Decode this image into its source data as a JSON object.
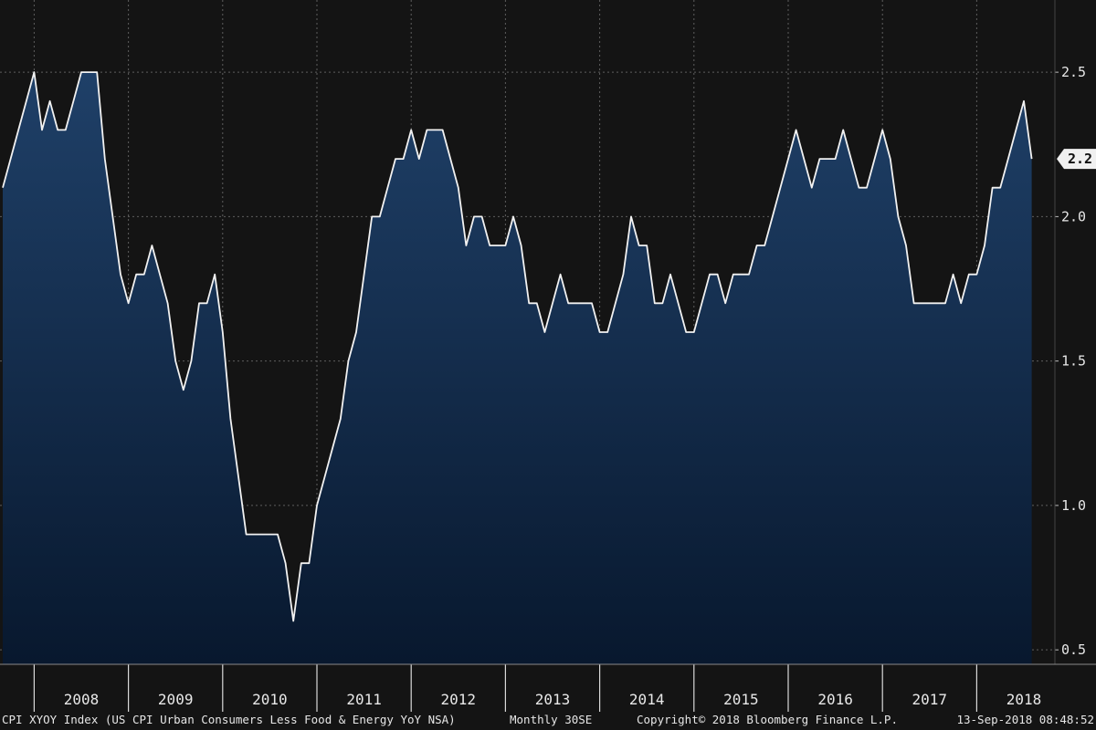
{
  "chart_data": {
    "type": "area",
    "series": [
      {
        "ticker": "CPI XYOY Index",
        "x": [
          "2007-09",
          "2007-10",
          "2007-11",
          "2007-12",
          "2008-01",
          "2008-02",
          "2008-03",
          "2008-04",
          "2008-05",
          "2008-06",
          "2008-07",
          "2008-08",
          "2008-09",
          "2008-10",
          "2008-11",
          "2008-12",
          "2009-01",
          "2009-02",
          "2009-03",
          "2009-04",
          "2009-05",
          "2009-06",
          "2009-07",
          "2009-08",
          "2009-09",
          "2009-10",
          "2009-11",
          "2009-12",
          "2010-01",
          "2010-02",
          "2010-03",
          "2010-04",
          "2010-05",
          "2010-06",
          "2010-07",
          "2010-08",
          "2010-09",
          "2010-10",
          "2010-11",
          "2010-12",
          "2011-01",
          "2011-02",
          "2011-03",
          "2011-04",
          "2011-05",
          "2011-06",
          "2011-07",
          "2011-08",
          "2011-09",
          "2011-10",
          "2011-11",
          "2011-12",
          "2012-01",
          "2012-02",
          "2012-03",
          "2012-04",
          "2012-05",
          "2012-06",
          "2012-07",
          "2012-08",
          "2012-09",
          "2012-10",
          "2012-11",
          "2012-12",
          "2013-01",
          "2013-02",
          "2013-03",
          "2013-04",
          "2013-05",
          "2013-06",
          "2013-07",
          "2013-08",
          "2013-09",
          "2013-10",
          "2013-11",
          "2013-12",
          "2014-01",
          "2014-02",
          "2014-03",
          "2014-04",
          "2014-05",
          "2014-06",
          "2014-07",
          "2014-08",
          "2014-09",
          "2014-10",
          "2014-11",
          "2014-12",
          "2015-01",
          "2015-02",
          "2015-03",
          "2015-04",
          "2015-05",
          "2015-06",
          "2015-07",
          "2015-08",
          "2015-09",
          "2015-10",
          "2015-11",
          "2015-12",
          "2016-01",
          "2016-02",
          "2016-03",
          "2016-04",
          "2016-05",
          "2016-06",
          "2016-07",
          "2016-08",
          "2016-09",
          "2016-10",
          "2016-11",
          "2016-12",
          "2017-01",
          "2017-02",
          "2017-03",
          "2017-04",
          "2017-05",
          "2017-06",
          "2017-07",
          "2017-08",
          "2017-09",
          "2017-10",
          "2017-11",
          "2017-12",
          "2018-01",
          "2018-02",
          "2018-03",
          "2018-04",
          "2018-05",
          "2018-06",
          "2018-07",
          "2018-08"
        ],
        "values": [
          2.1,
          2.2,
          2.3,
          2.4,
          2.5,
          2.3,
          2.4,
          2.3,
          2.3,
          2.4,
          2.5,
          2.5,
          2.5,
          2.2,
          2.0,
          1.8,
          1.7,
          1.8,
          1.8,
          1.9,
          1.8,
          1.7,
          1.5,
          1.4,
          1.5,
          1.7,
          1.7,
          1.8,
          1.6,
          1.3,
          1.1,
          0.9,
          0.9,
          0.9,
          0.9,
          0.9,
          0.8,
          0.6,
          0.8,
          0.8,
          1.0,
          1.1,
          1.2,
          1.3,
          1.5,
          1.6,
          1.8,
          2.0,
          2.0,
          2.1,
          2.2,
          2.2,
          2.3,
          2.2,
          2.3,
          2.3,
          2.3,
          2.2,
          2.1,
          1.9,
          2.0,
          2.0,
          1.9,
          1.9,
          1.9,
          2.0,
          1.9,
          1.7,
          1.7,
          1.6,
          1.7,
          1.8,
          1.7,
          1.7,
          1.7,
          1.7,
          1.6,
          1.6,
          1.7,
          1.8,
          2.0,
          1.9,
          1.9,
          1.7,
          1.7,
          1.8,
          1.7,
          1.6,
          1.6,
          1.7,
          1.8,
          1.8,
          1.7,
          1.8,
          1.8,
          1.8,
          1.9,
          1.9,
          2.0,
          2.1,
          2.2,
          2.3,
          2.2,
          2.1,
          2.2,
          2.2,
          2.2,
          2.3,
          2.2,
          2.1,
          2.1,
          2.2,
          2.3,
          2.2,
          2.0,
          1.9,
          1.7,
          1.7,
          1.7,
          1.7,
          1.7,
          1.8,
          1.7,
          1.8,
          1.8,
          1.9,
          2.1,
          2.1,
          2.2,
          2.3,
          2.4,
          2.2
        ]
      }
    ],
    "ylim": [
      0.45,
      2.75
    ],
    "y_ticks": [
      "0.5",
      "1.0",
      "1.5",
      "2.0",
      "2.5"
    ],
    "x_tick_labels": [
      "2008",
      "2009",
      "2010",
      "2011",
      "2012",
      "2013",
      "2014",
      "2015",
      "2016",
      "2017",
      "2018"
    ],
    "last_value_label": "2.2",
    "grid": true,
    "title": "",
    "xlabel": "",
    "ylabel": ""
  },
  "colors": {
    "background": "#141414",
    "area_top": "#1f4068",
    "area_bottom": "#08182e",
    "line": "#f2f2f2",
    "grid": "#5e5e5e",
    "last_label_bg": "#f0f0f0",
    "last_label_text": "#101010"
  },
  "footer": {
    "security": "CPI XYOY Index (US CPI Urban Consumers Less Food & Energy YoY NSA)",
    "periodicity": "Monthly 30SE",
    "copyright": "Copyright© 2018 Bloomberg Finance L.P.",
    "timestamp": "13-Sep-2018 08:48:52"
  }
}
